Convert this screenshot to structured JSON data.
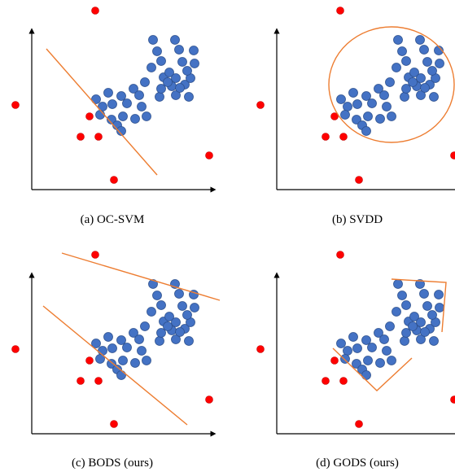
{
  "panels": [
    {
      "id": "a",
      "caption": "(a)  OC-SVM",
      "boundary": "line"
    },
    {
      "id": "b",
      "caption": "(b)  SVDD",
      "boundary": "ellipse"
    },
    {
      "id": "c",
      "caption": "(c)  BODS (ours)",
      "boundary": "two-lines"
    },
    {
      "id": "d",
      "caption": "(d)  GODS (ours)",
      "boundary": "two-v-shapes"
    }
  ],
  "colors": {
    "inlier_fill": "#4472c4",
    "inlier_stroke": "#2f528f",
    "outlier_fill": "#ff0000",
    "outlier_stroke": "#c00000",
    "boundary": "#ed7d31",
    "axes": "#000000"
  },
  "marker_types": [
    "inlier-point",
    "outlier-point"
  ]
}
